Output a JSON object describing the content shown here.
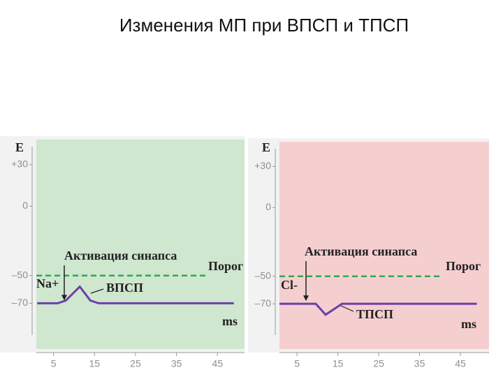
{
  "title": "Изменения МП при ВПСП и ТПСП",
  "chart_data": [
    {
      "type": "line",
      "y_label": "E",
      "x_label": "ms",
      "x": [
        1,
        6,
        8,
        11.4,
        14,
        16,
        49
      ],
      "series": [
        {
          "color": "#6a3fa8",
          "values": [
            -70,
            -70,
            -68,
            -58,
            -68,
            -70,
            -70
          ]
        }
      ],
      "threshold": -50,
      "threshold_color": "#2fa84f",
      "annotations": [
        "Активация синапса",
        "Порог",
        "Na+",
        "ВПСП"
      ],
      "background": "#cfe6cf",
      "xlim": [
        0.8,
        51.6
      ],
      "ylim": [
        -103,
        48
      ],
      "xticks": [
        5,
        15,
        25,
        35,
        45
      ],
      "yticks": [
        {
          "value": 30,
          "label": "+30"
        },
        0,
        {
          "value": -50,
          "label": "–50"
        },
        {
          "value": -70,
          "label": "–70"
        }
      ]
    },
    {
      "type": "line",
      "y_label": "E",
      "x_label": "ms",
      "x": [
        0.7,
        9.6,
        12,
        14,
        16,
        49
      ],
      "series": [
        {
          "color": "#6a3fa8",
          "values": [
            -70,
            -70,
            -78,
            -74,
            -70,
            -70
          ]
        }
      ],
      "threshold": -50,
      "threshold_color": "#2fa84f",
      "annotations": [
        "Активация синапса",
        "Порог",
        "Cl-",
        "ТПСП"
      ],
      "background": "#f5cfcf",
      "xlim": [
        0.7,
        52
      ],
      "ylim": [
        -103,
        48
      ],
      "xticks": [
        5,
        15,
        25,
        35,
        45
      ],
      "yticks": [
        {
          "value": 30,
          "label": "+30"
        },
        0,
        {
          "value": -50,
          "label": "–50"
        },
        {
          "value": -70,
          "label": "–70"
        }
      ]
    }
  ]
}
